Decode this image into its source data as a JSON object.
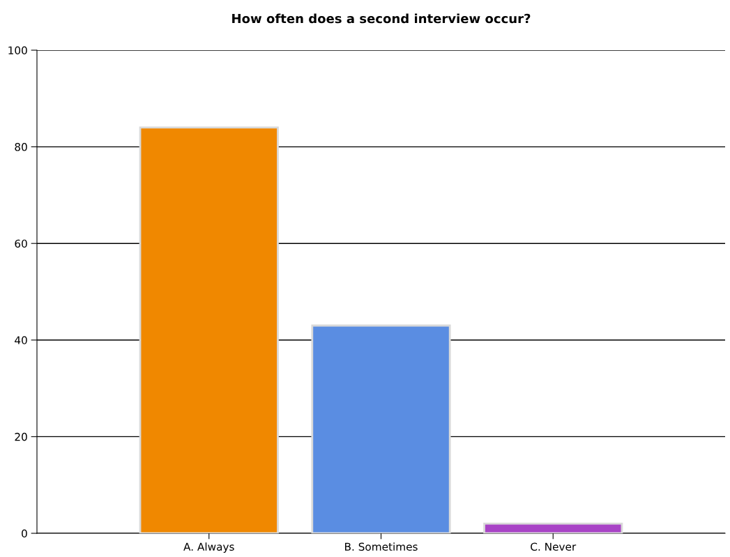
{
  "chart_data": {
    "type": "bar",
    "title": "How often does a second interview occur?",
    "categories": [
      "A. Always",
      "B. Sometimes",
      "C. Never"
    ],
    "values": [
      84,
      43,
      2
    ],
    "colors": [
      "#f08800",
      "#5a8de2",
      "#a843c6"
    ],
    "ylim": [
      0,
      100
    ],
    "yticks": [
      0,
      20,
      40,
      60,
      80,
      100
    ],
    "grid": "y",
    "legend": false
  }
}
